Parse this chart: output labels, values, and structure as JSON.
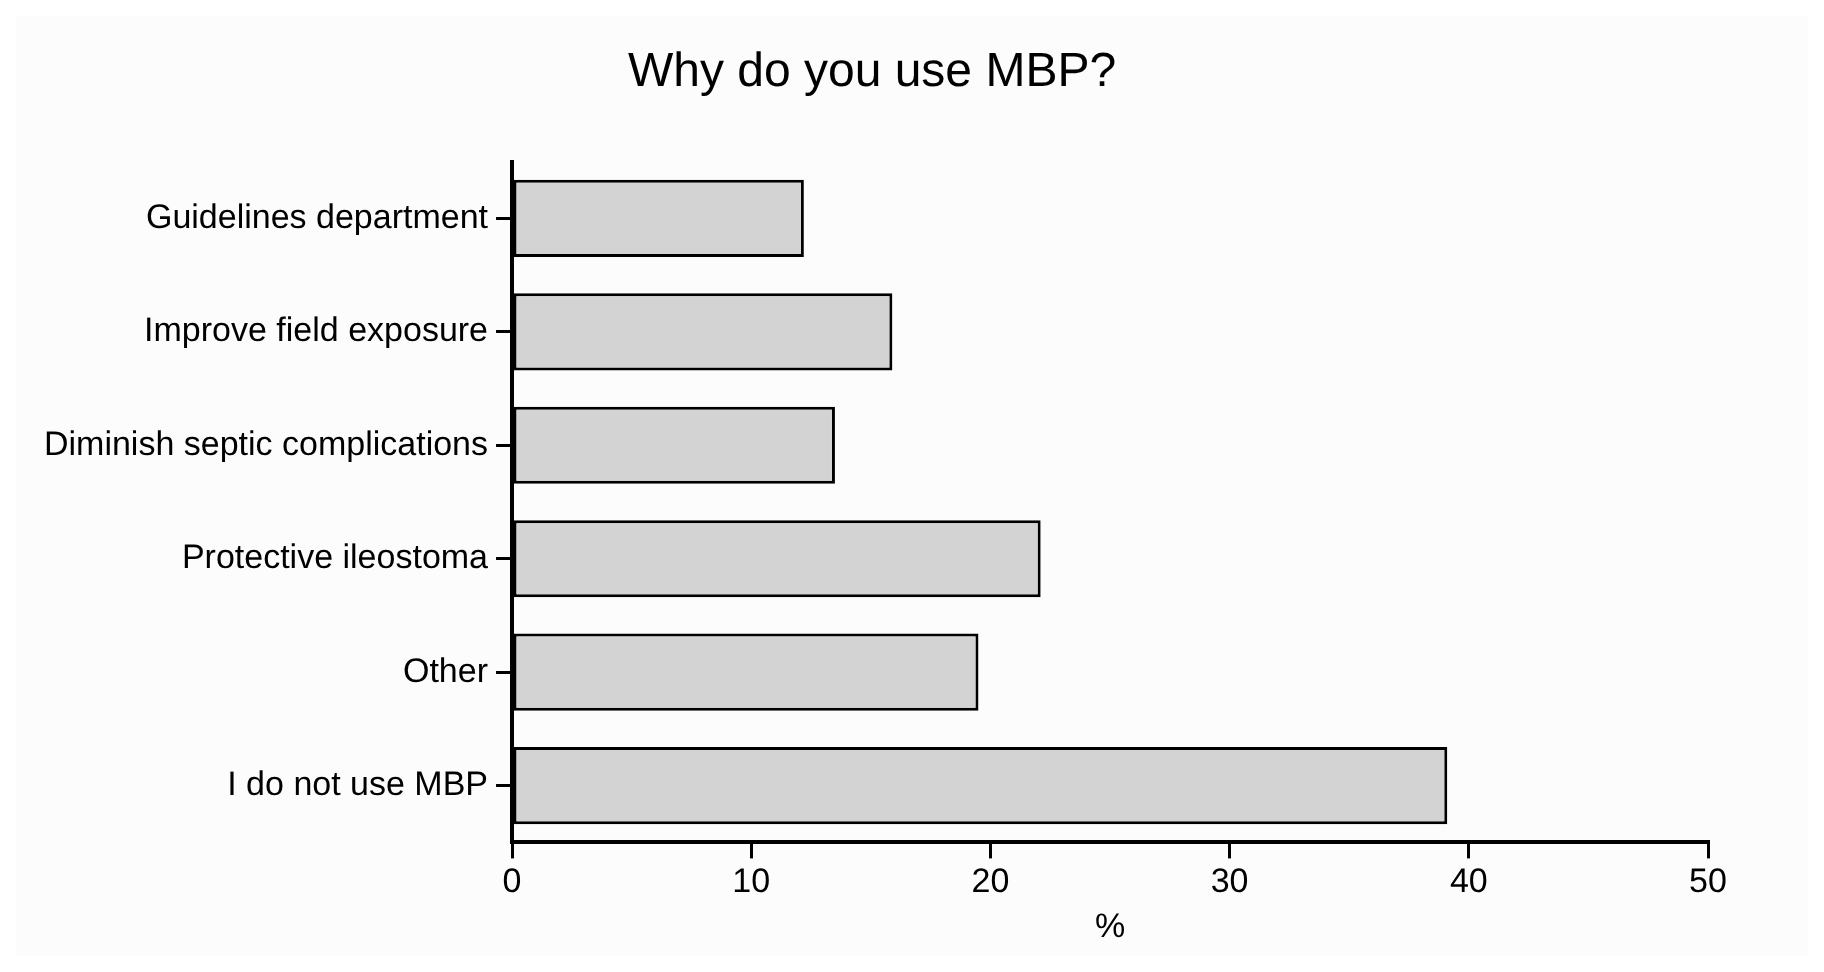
{
  "chart_data": {
    "type": "bar",
    "title": "Why do you use MBP?",
    "xlabel": "%",
    "orientation": "horizontal",
    "categories": [
      "Guidelines department",
      "Improve field exposure",
      "Diminish septic complications",
      "Protective ileostoma",
      "Other",
      "I do not use MBP"
    ],
    "values": [
      12.2,
      15.9,
      13.5,
      22.1,
      19.5,
      39.1
    ],
    "color": "#d3d3d3",
    "xlim": [
      0,
      50
    ],
    "xticks": [
      0,
      10,
      20,
      30,
      40,
      50
    ]
  }
}
